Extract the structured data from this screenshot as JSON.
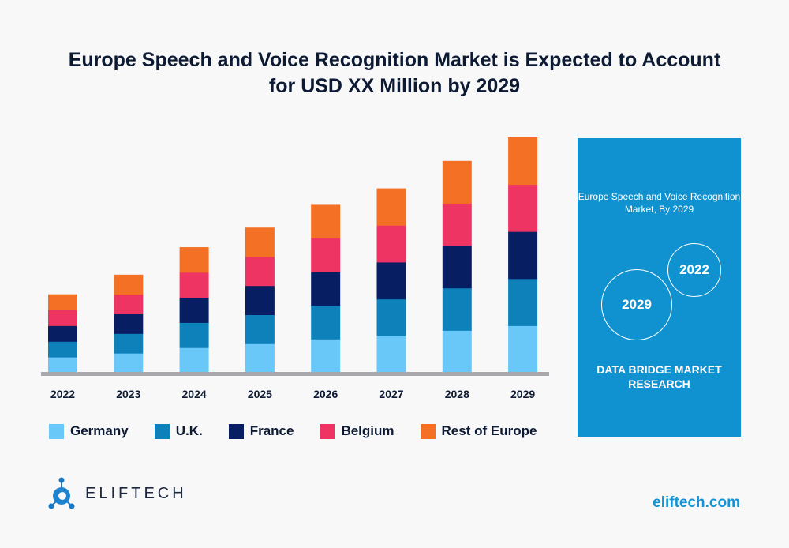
{
  "title_line1": "Europe Speech and Voice Recognition Market is Expected to Account",
  "title_line2": "for USD XX Million by 2029",
  "chart_data": {
    "type": "bar",
    "stacked": true,
    "categories": [
      "2022",
      "2023",
      "2024",
      "2025",
      "2026",
      "2027",
      "2028",
      "2029"
    ],
    "series": [
      {
        "name": "Germany",
        "color": "#69c8f7",
        "values": [
          20,
          25,
          32,
          37,
          43,
          47,
          54,
          60
        ]
      },
      {
        "name": "U.K.",
        "color": "#0e80ba",
        "values": [
          20,
          25,
          32,
          37,
          43,
          47,
          54,
          60
        ]
      },
      {
        "name": "France",
        "color": "#071e63",
        "values": [
          20,
          25,
          32,
          37,
          43,
          47,
          54,
          60
        ]
      },
      {
        "name": "Belgium",
        "color": "#ee3462",
        "values": [
          20,
          25,
          32,
          37,
          43,
          47,
          54,
          60
        ]
      },
      {
        "name": "Rest of Europe",
        "color": "#f37024",
        "values": [
          20,
          25,
          32,
          37,
          43,
          47,
          54,
          60
        ]
      }
    ],
    "ylim": [
      0,
      300
    ],
    "grid": false,
    "legend_position": "bottom"
  },
  "panel": {
    "title": "Europe Speech and Voice Recognition Market, By 2029",
    "circle_large": "2029",
    "circle_small": "2022",
    "footer": "DATA BRIDGE MARKET RESEARCH",
    "color": "#1192d0"
  },
  "brand": {
    "name": "ELIFTECH",
    "site": "eliftech.com"
  }
}
